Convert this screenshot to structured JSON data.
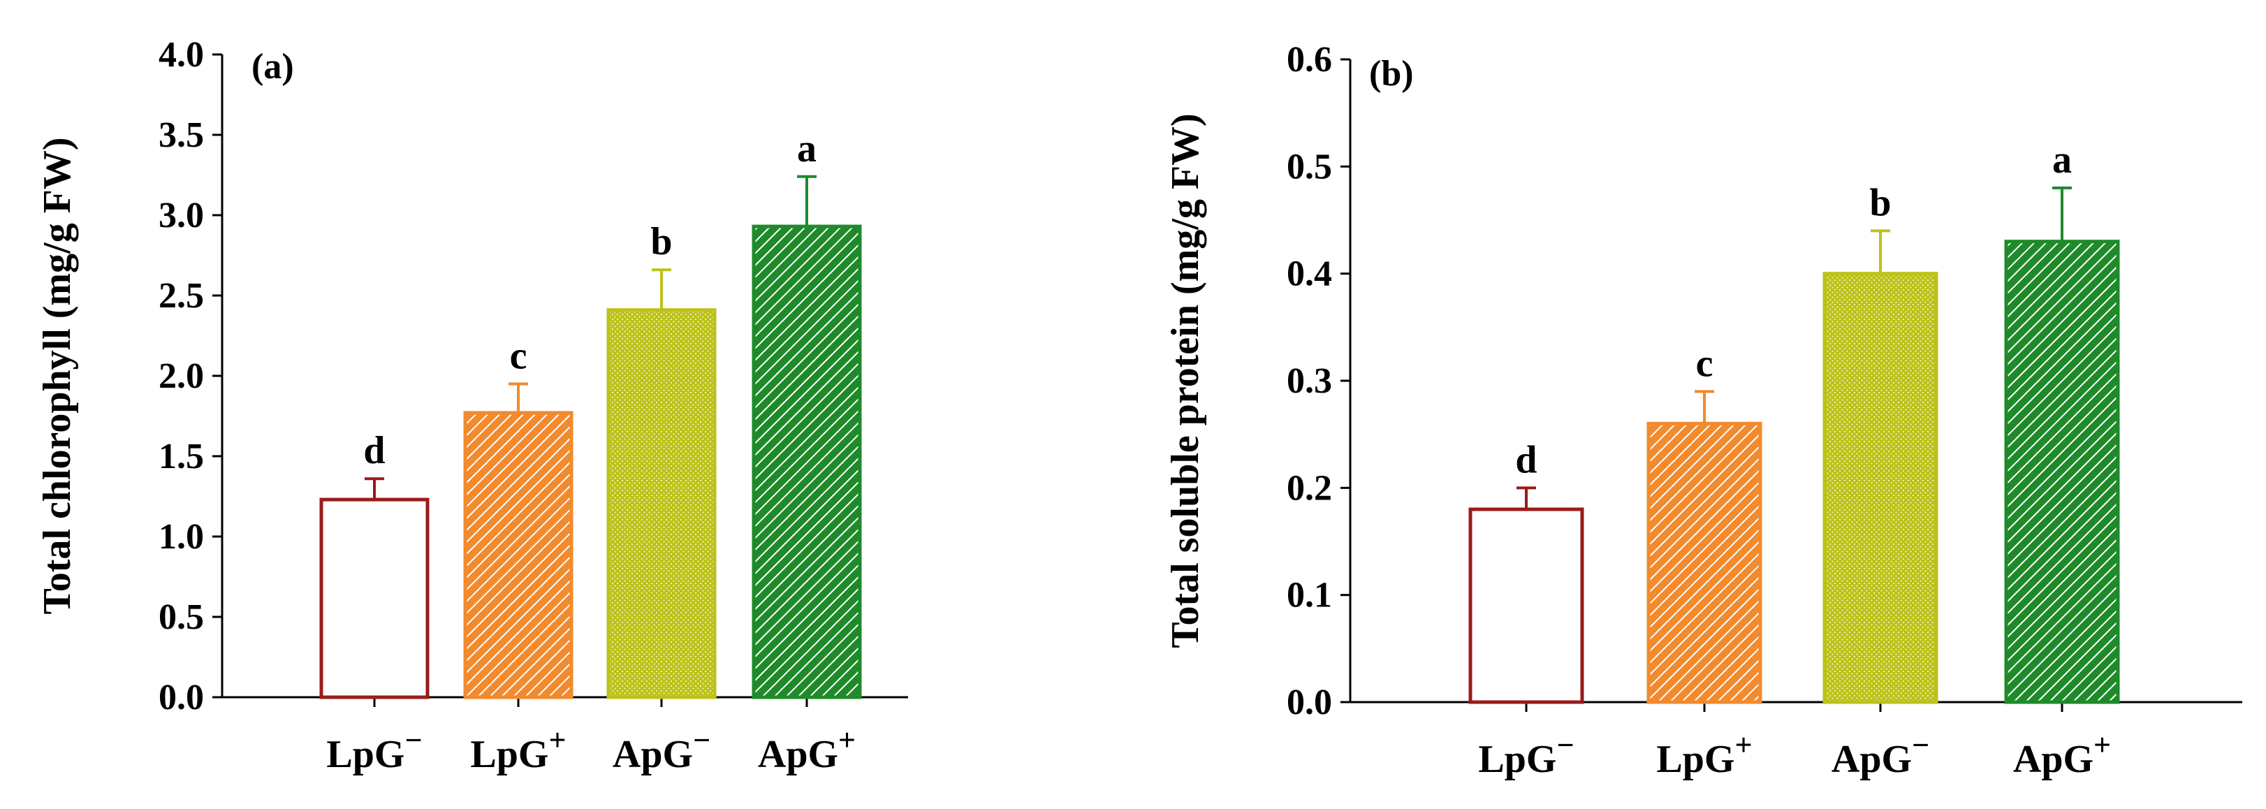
{
  "chart_data": [
    {
      "type": "bar",
      "panel_label": "(a)",
      "ylabel": "Total chlorophyll  (mg/g FW)",
      "xlabel": "",
      "ylim": [
        0,
        4.0
      ],
      "yticks": [
        "0.0",
        "0.5",
        "1.0",
        "1.5",
        "2.0",
        "2.5",
        "3.0",
        "3.5",
        "4.0"
      ],
      "ytick_values": [
        0,
        0.5,
        1.0,
        1.5,
        2.0,
        2.5,
        3.0,
        3.5,
        4.0
      ],
      "categories": [
        {
          "base": "LpG",
          "sup": "−"
        },
        {
          "base": "LpG",
          "sup": "+"
        },
        {
          "base": "ApG",
          "sup": "−"
        },
        {
          "base": "ApG",
          "sup": "+"
        }
      ],
      "values": [
        1.23,
        1.77,
        2.41,
        2.93
      ],
      "errors": [
        0.13,
        0.18,
        0.25,
        0.31
      ],
      "significance": [
        "d",
        "c",
        "b",
        "a"
      ],
      "colors": [
        "#9b1b1b",
        "#f28a2e",
        "#bcc21a",
        "#1f8a2a"
      ],
      "patterns": [
        "none",
        "hatch",
        "dots",
        "hatch"
      ]
    },
    {
      "type": "bar",
      "panel_label": "(b)",
      "ylabel": "Total soluble protein  (mg/g FW)",
      "xlabel": "",
      "ylim": [
        0,
        0.6
      ],
      "yticks": [
        "0.0",
        "0.1",
        "0.2",
        "0.3",
        "0.4",
        "0.5",
        "0.6"
      ],
      "ytick_values": [
        0,
        0.1,
        0.2,
        0.3,
        0.4,
        0.5,
        0.6
      ],
      "categories": [
        {
          "base": "LpG",
          "sup": "−"
        },
        {
          "base": "LpG",
          "sup": "+"
        },
        {
          "base": "ApG",
          "sup": "−"
        },
        {
          "base": "ApG",
          "sup": "+"
        }
      ],
      "values": [
        0.18,
        0.26,
        0.4,
        0.43
      ],
      "errors": [
        0.02,
        0.03,
        0.04,
        0.05
      ],
      "significance": [
        "d",
        "c",
        "b",
        "a"
      ],
      "colors": [
        "#9b1b1b",
        "#f28a2e",
        "#bcc21a",
        "#1f8a2a"
      ],
      "patterns": [
        "none",
        "hatch",
        "dots",
        "hatch"
      ]
    }
  ]
}
